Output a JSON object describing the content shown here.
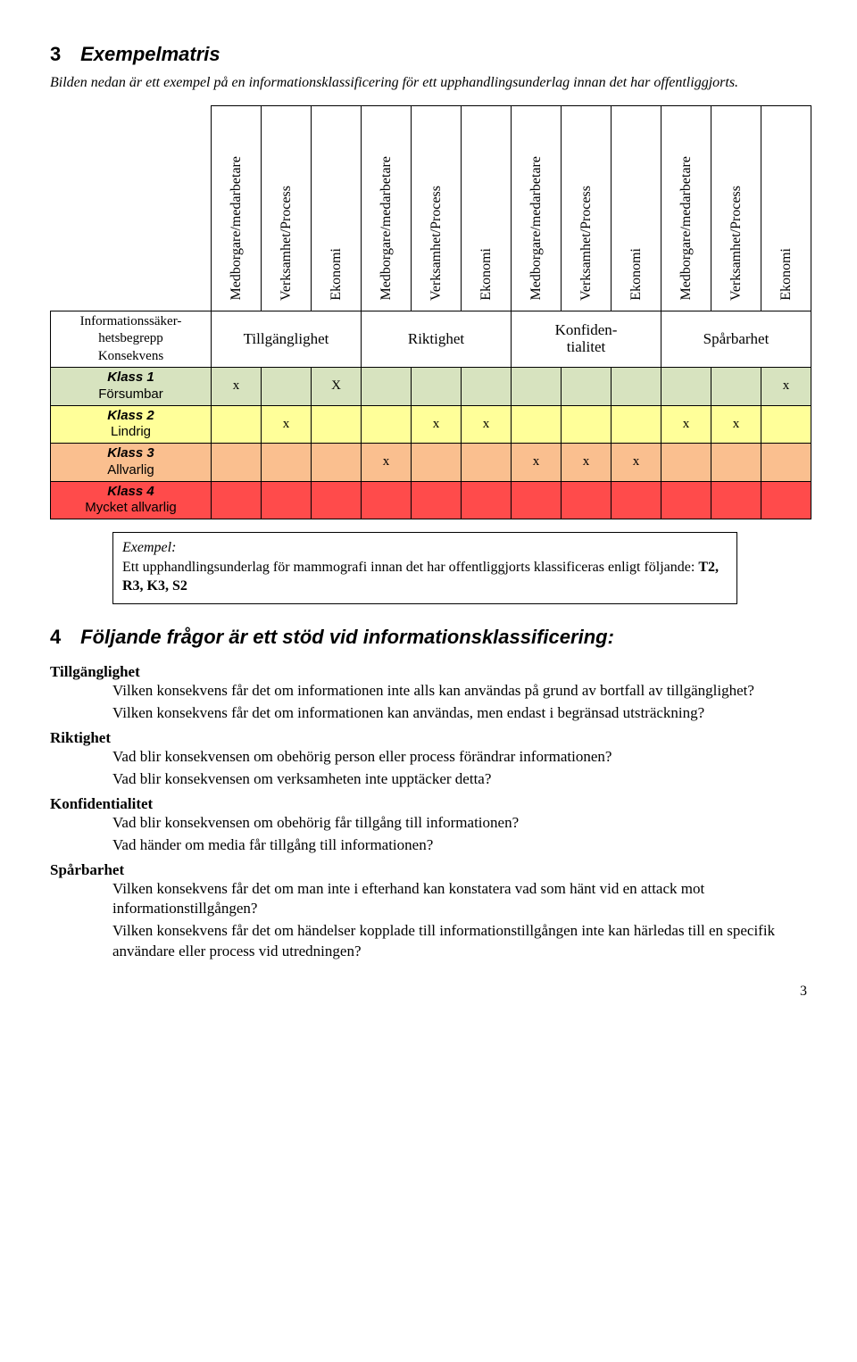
{
  "section3": {
    "num": "3",
    "title": "Exempelmatris",
    "intro": "Bilden nedan är ett exempel på en informationsklassificering för ett upphandlingsunderlag innan det har offentliggjorts."
  },
  "matrix": {
    "sub_headers": [
      "Medborgare/medarbetare",
      "Verksamhet/Process",
      "Ekonomi",
      "Medborgare/medarbetare",
      "Verksamhet/Process",
      "Ekonomi",
      "Medborgare/medarbetare",
      "Verksamhet/Process",
      "Ekonomi",
      "Medborgare/medarbetare",
      "Verksamhet/Process",
      "Ekonomi"
    ],
    "info_label_line1": "Informationssäker-",
    "info_label_line2": "hetsbegrepp",
    "info_label_line3": "Konsekvens",
    "group_headers": [
      "Tillgänglighet",
      "Riktighet",
      "Konfiden-tialitet",
      "Spårbarhet"
    ],
    "rows": [
      {
        "klass": "Klass 1",
        "sub": "Försumbar",
        "bg": "#d7e3bf",
        "cells": [
          "x",
          "",
          "X",
          "",
          "",
          "",
          "",
          "",
          "",
          "",
          "",
          "x"
        ]
      },
      {
        "klass": "Klass 2",
        "sub": "Lindrig",
        "bg": "#ffff99",
        "cells": [
          "",
          "x",
          "",
          "",
          "x",
          "x",
          "",
          "",
          "",
          "x",
          "x",
          ""
        ]
      },
      {
        "klass": "Klass 3",
        "sub": "Allvarlig",
        "bg": "#fabf8f",
        "cells": [
          "",
          "",
          "",
          "x",
          "",
          "",
          "x",
          "x",
          "x",
          "",
          "",
          ""
        ]
      },
      {
        "klass": "Klass 4",
        "sub": "Mycket allvarlig",
        "bg": "#ff4b4b",
        "cells": [
          "",
          "",
          "",
          "",
          "",
          "",
          "",
          "",
          "",
          "",
          "",
          ""
        ]
      }
    ]
  },
  "example": {
    "label": "Exempel:",
    "text_pre": "Ett upphandlingsunderlag för mammografi innan det har offentliggjorts klassificeras enligt följande: ",
    "text_bold": "T2, R3, K3, S2"
  },
  "section4": {
    "num": "4",
    "title": "Följande frågor är ett stöd vid informationsklassificering:"
  },
  "questions": [
    {
      "heading": "Tillgänglighet",
      "items": [
        "Vilken konsekvens får det om informationen inte alls kan användas på grund av bortfall av tillgänglighet?",
        "Vilken konsekvens får det om informationen kan användas, men endast i begränsad utsträckning?"
      ]
    },
    {
      "heading": "Riktighet",
      "items": [
        "Vad blir konsekvensen om obehörig person eller process förändrar informationen?",
        "Vad blir konsekvensen om verksamheten inte upptäcker detta?"
      ]
    },
    {
      "heading": "Konfidentialitet",
      "items": [
        "Vad blir konsekvensen om obehörig får tillgång till informationen?",
        "Vad händer om media får tillgång till informationen?"
      ]
    },
    {
      "heading": "Spårbarhet",
      "items": [
        "Vilken konsekvens får det om man inte i efterhand kan konstatera vad som hänt vid en attack mot informationstillgången?",
        "Vilken konsekvens får det om händelser kopplade till informationstillgången inte kan härledas till en specifik användare eller process vid utredningen?"
      ]
    }
  ],
  "page_number": "3"
}
